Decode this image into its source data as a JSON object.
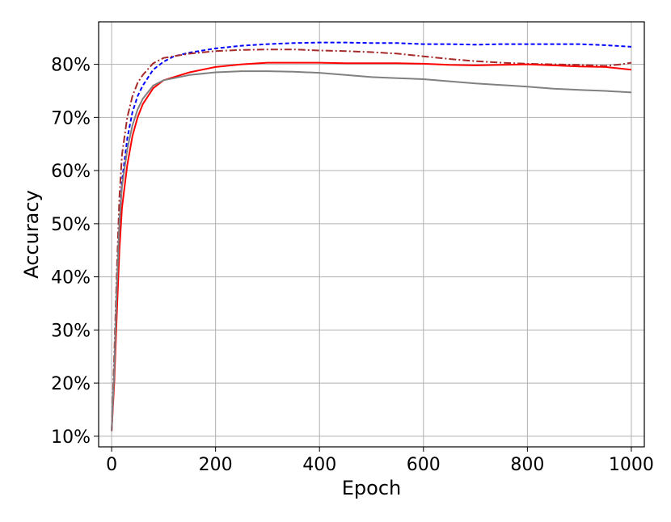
{
  "chart_data": {
    "type": "line",
    "title": "",
    "xlabel": "Epoch",
    "ylabel": "Accuracy",
    "xlim": [
      -25,
      1025
    ],
    "ylim": [
      8,
      88
    ],
    "grid": true,
    "x_ticks": [
      0,
      200,
      400,
      600,
      800,
      1000
    ],
    "y_ticks": [
      10,
      20,
      30,
      40,
      50,
      60,
      70,
      80
    ],
    "y_tick_labels": [
      "10%",
      "20%",
      "30%",
      "40%",
      "50%",
      "60%",
      "70%",
      "80%"
    ],
    "series": [
      {
        "color": "#0000ff",
        "style": "dashed",
        "points": [
          [
            0,
            11
          ],
          [
            5,
            22
          ],
          [
            10,
            37
          ],
          [
            15,
            50
          ],
          [
            20,
            58
          ],
          [
            30,
            66
          ],
          [
            40,
            71
          ],
          [
            50,
            74
          ],
          [
            60,
            76
          ],
          [
            80,
            79
          ],
          [
            100,
            80.5
          ],
          [
            120,
            81.5
          ],
          [
            150,
            82.2
          ],
          [
            200,
            83
          ],
          [
            250,
            83.5
          ],
          [
            300,
            83.8
          ],
          [
            350,
            84
          ],
          [
            400,
            84.1
          ],
          [
            450,
            84.1
          ],
          [
            500,
            84
          ],
          [
            550,
            84
          ],
          [
            600,
            83.8
          ],
          [
            650,
            83.8
          ],
          [
            700,
            83.7
          ],
          [
            750,
            83.8
          ],
          [
            800,
            83.8
          ],
          [
            850,
            83.8
          ],
          [
            900,
            83.8
          ],
          [
            950,
            83.6
          ],
          [
            1000,
            83.3
          ]
        ]
      },
      {
        "color": "#a52a2a",
        "style": "dashdot",
        "points": [
          [
            0,
            11
          ],
          [
            5,
            25
          ],
          [
            10,
            41
          ],
          [
            15,
            55
          ],
          [
            20,
            63
          ],
          [
            30,
            70
          ],
          [
            40,
            74
          ],
          [
            50,
            76.5
          ],
          [
            60,
            78
          ],
          [
            80,
            80.2
          ],
          [
            100,
            81.2
          ],
          [
            150,
            82
          ],
          [
            200,
            82.5
          ],
          [
            250,
            82.7
          ],
          [
            300,
            82.8
          ],
          [
            350,
            82.8
          ],
          [
            400,
            82.6
          ],
          [
            450,
            82.5
          ],
          [
            500,
            82.3
          ],
          [
            550,
            82
          ],
          [
            600,
            81.5
          ],
          [
            650,
            81
          ],
          [
            700,
            80.6
          ],
          [
            750,
            80.3
          ],
          [
            800,
            80.1
          ],
          [
            850,
            80
          ],
          [
            900,
            79.9
          ],
          [
            950,
            79.7
          ],
          [
            980,
            80
          ],
          [
            1000,
            80.3
          ]
        ]
      },
      {
        "color": "#ff0000",
        "style": "solid",
        "points": [
          [
            0,
            11
          ],
          [
            5,
            20
          ],
          [
            10,
            33
          ],
          [
            15,
            45
          ],
          [
            20,
            53
          ],
          [
            30,
            61
          ],
          [
            40,
            66.5
          ],
          [
            50,
            70
          ],
          [
            60,
            72.5
          ],
          [
            80,
            75.5
          ],
          [
            100,
            77
          ],
          [
            150,
            78.5
          ],
          [
            200,
            79.5
          ],
          [
            250,
            80
          ],
          [
            300,
            80.3
          ],
          [
            350,
            80.3
          ],
          [
            400,
            80.3
          ],
          [
            450,
            80.2
          ],
          [
            500,
            80.2
          ],
          [
            550,
            80.2
          ],
          [
            600,
            80.1
          ],
          [
            650,
            79.9
          ],
          [
            700,
            79.8
          ],
          [
            750,
            79.9
          ],
          [
            800,
            80
          ],
          [
            850,
            79.8
          ],
          [
            900,
            79.6
          ],
          [
            950,
            79.5
          ],
          [
            1000,
            79
          ]
        ]
      },
      {
        "color": "#808080",
        "style": "solid",
        "points": [
          [
            0,
            11
          ],
          [
            5,
            22
          ],
          [
            10,
            38
          ],
          [
            15,
            50
          ],
          [
            20,
            57
          ],
          [
            30,
            64
          ],
          [
            40,
            68.5
          ],
          [
            50,
            71.5
          ],
          [
            60,
            73.5
          ],
          [
            80,
            76
          ],
          [
            100,
            77
          ],
          [
            150,
            78
          ],
          [
            200,
            78.5
          ],
          [
            250,
            78.7
          ],
          [
            300,
            78.7
          ],
          [
            350,
            78.6
          ],
          [
            400,
            78.4
          ],
          [
            450,
            78
          ],
          [
            500,
            77.6
          ],
          [
            550,
            77.4
          ],
          [
            600,
            77.2
          ],
          [
            650,
            76.8
          ],
          [
            700,
            76.4
          ],
          [
            750,
            76.1
          ],
          [
            800,
            75.8
          ],
          [
            850,
            75.4
          ],
          [
            900,
            75.2
          ],
          [
            950,
            75
          ],
          [
            1000,
            74.7
          ]
        ]
      }
    ]
  }
}
